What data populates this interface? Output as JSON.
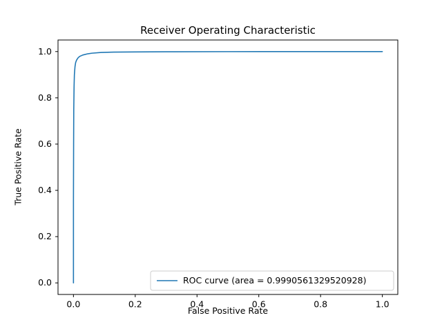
{
  "chart_data": {
    "type": "line",
    "title": "Receiver Operating Characteristic",
    "xlabel": "False Positive Rate",
    "ylabel": "True Positive Rate",
    "xlim": [
      -0.05,
      1.05
    ],
    "ylim": [
      -0.05,
      1.05
    ],
    "x_tick_values": [
      0.0,
      0.2,
      0.4,
      0.6,
      0.8,
      1.0
    ],
    "x_tick_labels": [
      "0.0",
      "0.2",
      "0.4",
      "0.6",
      "0.8",
      "1.0"
    ],
    "y_tick_values": [
      0.0,
      0.2,
      0.4,
      0.6,
      0.8,
      1.0
    ],
    "y_tick_labels": [
      "0.0",
      "0.2",
      "0.4",
      "0.6",
      "0.8",
      "1.0"
    ],
    "grid": false,
    "legend": {
      "position": "lower right",
      "entries": [
        {
          "label": "ROC curve (area = 0.9990561329520928)",
          "color": "#1f77b4"
        }
      ]
    },
    "series": [
      {
        "name": "ROC curve",
        "auc": 0.9990561329520928,
        "color": "#1f77b4",
        "points": [
          [
            0.0,
            0.0
          ],
          [
            0.0,
            0.36
          ],
          [
            0.0005,
            0.6
          ],
          [
            0.001,
            0.75
          ],
          [
            0.002,
            0.85
          ],
          [
            0.003,
            0.9
          ],
          [
            0.005,
            0.935
          ],
          [
            0.007,
            0.952
          ],
          [
            0.01,
            0.963
          ],
          [
            0.015,
            0.973
          ],
          [
            0.02,
            0.979
          ],
          [
            0.03,
            0.985
          ],
          [
            0.045,
            0.99
          ],
          [
            0.06,
            0.993
          ],
          [
            0.09,
            0.996
          ],
          [
            0.13,
            0.9975
          ],
          [
            0.2,
            0.9985
          ],
          [
            0.3,
            0.9992
          ],
          [
            0.5,
            0.9997
          ],
          [
            0.75,
            1.0
          ],
          [
            1.0,
            1.0
          ]
        ]
      }
    ]
  },
  "colors": {
    "line": "#1f77b4",
    "axis": "#000000",
    "tick": "#000000",
    "legend_border": "#cccccc",
    "background": "#ffffff"
  }
}
